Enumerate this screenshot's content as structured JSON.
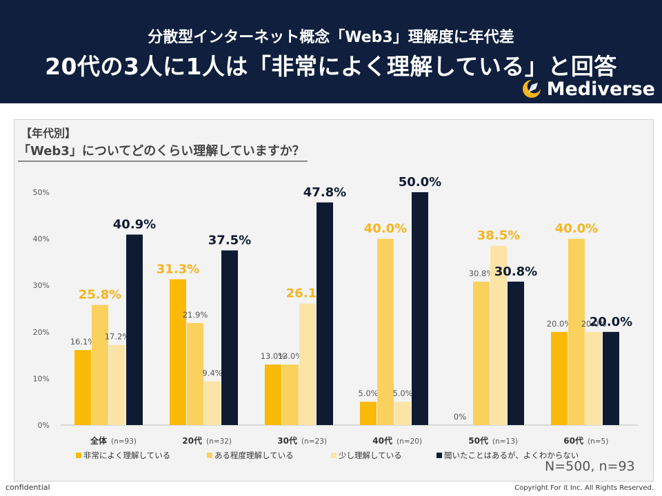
{
  "header": {
    "subtitle": "分散型インターネット概念「Web3」理解度に年代差",
    "title": "20代の3人に1人は「非常によく理解している」と回答",
    "brand": "Mediverse"
  },
  "question": {
    "tag": "【年代別】",
    "text": "「Web3」についてどのくらい理解していますか？"
  },
  "sample_note": "N=500, n=93",
  "footer": {
    "left": "confidential",
    "right": "Copyright For it Inc. All Rights Reserved."
  },
  "colors": {
    "s1": "#fbb908",
    "s2": "#fbd15e",
    "s3": "#fbe4a6",
    "s4": "#0f1a33",
    "label_orange": "#f5b51f",
    "label_navy": "#0f1a33",
    "label_gray": "#555555"
  },
  "chart_data": {
    "type": "bar",
    "categories": [
      "全体",
      "20代",
      "30代",
      "40代",
      "50代",
      "60代"
    ],
    "category_n": [
      "(n=93)",
      "(n=32)",
      "(n=23)",
      "(n=20)",
      "(n=13)",
      "(n=5)"
    ],
    "series": [
      {
        "name": "非常によく理解している",
        "values": [
          16.1,
          31.3,
          13.0,
          5.0,
          0,
          20.0
        ]
      },
      {
        "name": "ある程度理解している",
        "values": [
          25.8,
          21.9,
          13.0,
          40.0,
          30.8,
          40.0
        ]
      },
      {
        "name": "少し理解している",
        "values": [
          17.2,
          9.4,
          26.1,
          5.0,
          38.5,
          20.0
        ]
      },
      {
        "name": "聞いたことはあるが、よくわからない",
        "values": [
          40.9,
          37.5,
          47.8,
          50.0,
          30.8,
          20.0
        ]
      }
    ],
    "ylim": [
      0,
      50
    ],
    "yticks": [
      "0%",
      "10%",
      "20%",
      "30%",
      "40%",
      "50%"
    ],
    "value_labels": [
      [
        "16.1%",
        "31.3%",
        "13.0%",
        "5.0%",
        "0%",
        "20.0%"
      ],
      [
        "25.8%",
        "21.9%",
        "13.0%",
        "40.0%",
        "30.8%",
        "40.0%"
      ],
      [
        "17.2%",
        "9.4%",
        "26.1%",
        "5.0%",
        "38.5%",
        "20.0%"
      ],
      [
        "40.9%",
        "37.5%",
        "47.8%",
        "50.0%",
        "30.8%",
        "20.0%"
      ]
    ],
    "highlight": [
      [
        "none",
        "orange",
        "none",
        "none",
        "none",
        "none"
      ],
      [
        "orange",
        "none",
        "none",
        "orange",
        "none",
        "orange"
      ],
      [
        "none",
        "none",
        "orange",
        "none",
        "orange",
        "none"
      ],
      [
        "navy",
        "navy",
        "navy",
        "navy",
        "navy",
        "navy"
      ]
    ],
    "legend_position": "bottom",
    "grid": false
  }
}
